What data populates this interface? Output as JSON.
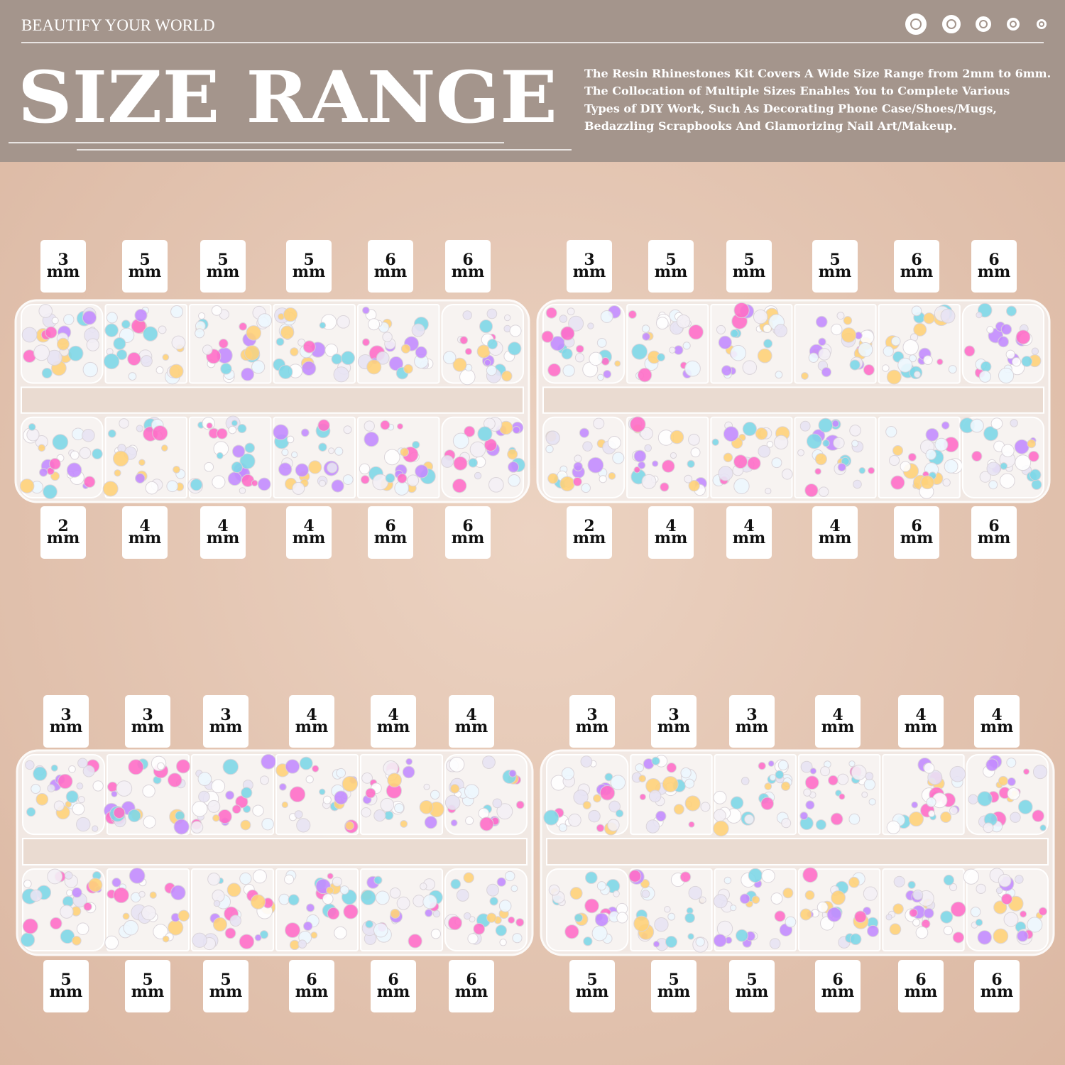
{
  "header": {
    "tagline": "BEAUTIFY YOUR WORLD",
    "title": "SIZE RANGE",
    "description": [
      "The Resin Rhinestones Kit Covers A Wide Size Range from 2mm to 6mm.",
      "The Collocation of Multiple Sizes Enables You to Complete Various",
      "Types of DIY Work, Such As Decorating Phone Case/Shoes/Mugs,",
      "Bedazzling Scrapbooks And Glamorizing Nail Art/Makeup."
    ]
  },
  "trays": [
    {
      "top": [
        {
          "size": "3",
          "unit": "mm"
        },
        {
          "size": "5",
          "unit": "mm"
        },
        {
          "size": "5",
          "unit": "mm"
        },
        {
          "size": "5",
          "unit": "mm"
        },
        {
          "size": "6",
          "unit": "mm"
        },
        {
          "size": "6",
          "unit": "mm"
        }
      ],
      "bottom": [
        {
          "size": "2",
          "unit": "mm"
        },
        {
          "size": "4",
          "unit": "mm"
        },
        {
          "size": "4",
          "unit": "mm"
        },
        {
          "size": "4",
          "unit": "mm"
        },
        {
          "size": "6",
          "unit": "mm"
        },
        {
          "size": "6",
          "unit": "mm"
        }
      ]
    },
    {
      "top": [
        {
          "size": "3",
          "unit": "mm"
        },
        {
          "size": "5",
          "unit": "mm"
        },
        {
          "size": "5",
          "unit": "mm"
        },
        {
          "size": "5",
          "unit": "mm"
        },
        {
          "size": "6",
          "unit": "mm"
        },
        {
          "size": "6",
          "unit": "mm"
        }
      ],
      "bottom": [
        {
          "size": "2",
          "unit": "mm"
        },
        {
          "size": "4",
          "unit": "mm"
        },
        {
          "size": "4",
          "unit": "mm"
        },
        {
          "size": "4",
          "unit": "mm"
        },
        {
          "size": "6",
          "unit": "mm"
        },
        {
          "size": "6",
          "unit": "mm"
        }
      ]
    },
    {
      "top": [
        {
          "size": "3",
          "unit": "mm"
        },
        {
          "size": "3",
          "unit": "mm"
        },
        {
          "size": "3",
          "unit": "mm"
        },
        {
          "size": "4",
          "unit": "mm"
        },
        {
          "size": "4",
          "unit": "mm"
        },
        {
          "size": "4",
          "unit": "mm"
        }
      ],
      "bottom": [
        {
          "size": "5",
          "unit": "mm"
        },
        {
          "size": "5",
          "unit": "mm"
        },
        {
          "size": "5",
          "unit": "mm"
        },
        {
          "size": "6",
          "unit": "mm"
        },
        {
          "size": "6",
          "unit": "mm"
        },
        {
          "size": "6",
          "unit": "mm"
        }
      ]
    },
    {
      "top": [
        {
          "size": "3",
          "unit": "mm"
        },
        {
          "size": "3",
          "unit": "mm"
        },
        {
          "size": "3",
          "unit": "mm"
        },
        {
          "size": "4",
          "unit": "mm"
        },
        {
          "size": "4",
          "unit": "mm"
        },
        {
          "size": "4",
          "unit": "mm"
        }
      ],
      "bottom": [
        {
          "size": "5",
          "unit": "mm"
        },
        {
          "size": "5",
          "unit": "mm"
        },
        {
          "size": "5",
          "unit": "mm"
        },
        {
          "size": "6",
          "unit": "mm"
        },
        {
          "size": "6",
          "unit": "mm"
        },
        {
          "size": "6",
          "unit": "mm"
        }
      ]
    }
  ]
}
